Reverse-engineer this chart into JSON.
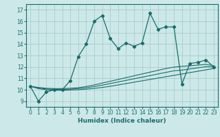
{
  "xlabel": "Humidex (Indice chaleur)",
  "bg_color": "#cce8e8",
  "grid_color": "#aacccc",
  "line_color": "#1a6b6b",
  "x": [
    0,
    1,
    2,
    3,
    4,
    5,
    6,
    7,
    8,
    9,
    10,
    11,
    12,
    13,
    14,
    15,
    16,
    17,
    18,
    19,
    20,
    21,
    22,
    23
  ],
  "humidex": [
    10.3,
    9.0,
    9.8,
    10.0,
    10.0,
    10.8,
    12.9,
    14.0,
    16.0,
    16.5,
    14.5,
    13.6,
    14.1,
    13.8,
    14.1,
    16.7,
    15.3,
    15.5,
    15.5,
    10.5,
    12.3,
    12.4,
    12.6,
    12.0
  ],
  "line2": [
    10.3,
    10.1,
    10.0,
    9.95,
    9.95,
    9.97,
    10.0,
    10.05,
    10.12,
    10.2,
    10.3,
    10.42,
    10.54,
    10.66,
    10.78,
    10.9,
    11.02,
    11.14,
    11.26,
    11.38,
    11.5,
    11.62,
    11.74,
    11.86
  ],
  "line3": [
    10.3,
    10.15,
    10.07,
    10.03,
    10.03,
    10.05,
    10.1,
    10.17,
    10.28,
    10.4,
    10.54,
    10.68,
    10.82,
    10.96,
    11.1,
    11.24,
    11.38,
    11.52,
    11.66,
    11.72,
    11.82,
    11.92,
    12.02,
    12.0
  ],
  "line4": [
    10.3,
    10.2,
    10.13,
    10.1,
    10.1,
    10.13,
    10.18,
    10.28,
    10.42,
    10.58,
    10.74,
    10.9,
    11.06,
    11.22,
    11.38,
    11.54,
    11.7,
    11.86,
    11.98,
    12.05,
    12.1,
    12.16,
    12.22,
    12.1
  ],
  "ylim": [
    8.5,
    17.5
  ],
  "xlim": [
    -0.5,
    23.5
  ],
  "yticks": [
    9,
    10,
    11,
    12,
    13,
    14,
    15,
    16,
    17
  ],
  "xticks": [
    0,
    1,
    2,
    3,
    4,
    5,
    6,
    7,
    8,
    9,
    10,
    11,
    12,
    13,
    14,
    15,
    16,
    17,
    18,
    19,
    20,
    21,
    22,
    23
  ],
  "xlabel_fontsize": 6.5,
  "tick_fontsize": 5.5
}
